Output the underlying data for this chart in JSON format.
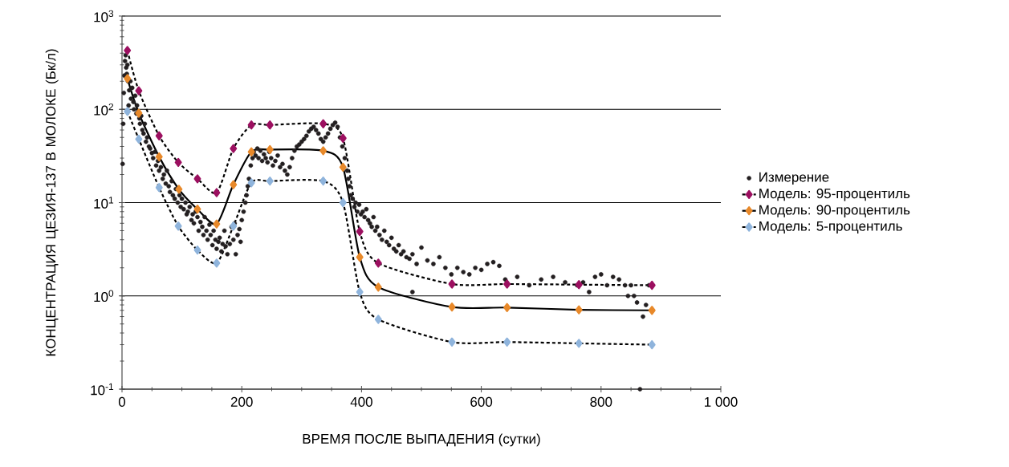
{
  "chart_data": {
    "type": "line",
    "xlabel": "ВРЕМЯ ПОСЛЕ ВЫПАДЕНИЯ (сутки)",
    "ylabel": "КОНЦЕНТРАЦИЯ ЦЕЗИЯ-137 В МОЛОКЕ (Бк/л)",
    "log": "y",
    "grid": "y",
    "legend": "right",
    "xlim": [
      0,
      1000
    ],
    "ylim": [
      0.1,
      1000
    ],
    "xticks": [
      0,
      200,
      400,
      600,
      800,
      {
        "value": 1000,
        "label": "1 000"
      }
    ],
    "yticks": [
      {
        "value": 0.1,
        "label": "10$^{-1}$"
      },
      {
        "value": 1,
        "label": "10$^{0}$"
      },
      {
        "value": 10,
        "label": "10$^{1}$"
      },
      {
        "value": 100,
        "label": "10$^{2}$"
      },
      {
        "value": 1000,
        "label": "10$^{3}$"
      }
    ],
    "series": [
      {
        "name": "Измерение",
        "type": "scatter",
        "marker": "circle",
        "color": "#231f20",
        "x": [
          1,
          2,
          3,
          4,
          5,
          6,
          7,
          8,
          9,
          10,
          11,
          12,
          14,
          15,
          17,
          19,
          20,
          22,
          24,
          25,
          27,
          29,
          30,
          32,
          34,
          36,
          38,
          40,
          42,
          45,
          47,
          50,
          52,
          55,
          57,
          60,
          62,
          65,
          68,
          70,
          73,
          75,
          78,
          80,
          83,
          85,
          88,
          90,
          93,
          96,
          98,
          100,
          103,
          106,
          108,
          110,
          113,
          116,
          118,
          120,
          123,
          126,
          128,
          131,
          134,
          136,
          138,
          141,
          143,
          146,
          148,
          151,
          153,
          156,
          158,
          161,
          163,
          166,
          168,
          171,
          173,
          176,
          180,
          183,
          186,
          188,
          190,
          193,
          196,
          198,
          200,
          203,
          206,
          208,
          210,
          212,
          215,
          218,
          220,
          223,
          226,
          228,
          231,
          234,
          237,
          240,
          243,
          246,
          249,
          252,
          256,
          260,
          264,
          268,
          272,
          276,
          280,
          284,
          288,
          292,
          296,
          300,
          304,
          308,
          312,
          316,
          320,
          324,
          328,
          332,
          336,
          340,
          344,
          348,
          352,
          356,
          360,
          364,
          368,
          372,
          376,
          378,
          380,
          382,
          385,
          388,
          390,
          393,
          396,
          399,
          402,
          405,
          408,
          411,
          414,
          417,
          420,
          423,
          426,
          430,
          434,
          438,
          442,
          446,
          450,
          454,
          458,
          462,
          466,
          470,
          475,
          480,
          485,
          485,
          492,
          500,
          510,
          520,
          530,
          540,
          550,
          560,
          570,
          580,
          590,
          600,
          610,
          620,
          630,
          640,
          660,
          680,
          700,
          720,
          740,
          760,
          770,
          780,
          790,
          800,
          810,
          820,
          830,
          840,
          845,
          850,
          855,
          860,
          865,
          870,
          875,
          880
        ],
        "values": [
          26,
          70,
          150,
          230,
          330,
          380,
          280,
          240,
          300,
          200,
          110,
          160,
          200,
          130,
          170,
          120,
          100,
          140,
          90,
          110,
          95,
          80,
          70,
          85,
          60,
          55,
          70,
          45,
          50,
          40,
          38,
          34,
          30,
          35,
          25,
          28,
          22,
          24,
          18,
          20,
          16,
          22,
          15,
          13,
          17,
          12,
          11,
          14,
          10,
          12,
          9,
          11,
          8.5,
          10,
          7.5,
          8,
          9,
          6.5,
          7.5,
          6,
          8,
          7,
          5,
          6.2,
          5.5,
          4.5,
          7,
          5,
          4,
          5.8,
          4.5,
          3.5,
          5,
          4,
          3.2,
          3.8,
          4.2,
          3,
          3.6,
          5,
          3.4,
          2.8,
          3.6,
          5.5,
          4,
          6,
          2.8,
          4.5,
          5.2,
          3.8,
          6.5,
          8,
          10,
          12,
          15,
          18,
          25,
          30,
          35,
          32,
          38,
          30,
          36,
          28,
          33,
          30,
          27,
          35,
          30,
          25,
          28,
          32,
          24,
          26,
          22,
          20,
          24,
          30,
          36,
          40,
          42,
          45,
          48,
          52,
          58,
          62,
          65,
          60,
          55,
          48,
          45,
          50,
          55,
          62,
          68,
          72,
          65,
          50,
          40,
          30,
          22,
          18,
          15,
          12,
          11,
          9,
          10,
          8,
          9.5,
          7.5,
          8,
          7,
          8.5,
          6.5,
          6,
          5.5,
          7,
          5,
          5.5,
          4.5,
          4,
          5,
          3.8,
          3.5,
          4.2,
          3.2,
          3,
          3.5,
          2.8,
          3,
          2.6,
          2.5,
          2.8,
          1.1,
          2.2,
          3.3,
          2.4,
          2.2,
          2.6,
          2,
          1.7,
          2,
          1.8,
          1.7,
          2,
          1.9,
          2.2,
          2.3,
          2.1,
          1.5,
          1.6,
          1.3,
          1.5,
          1.6,
          1.4,
          1.3,
          1.4,
          1.1,
          1.6,
          1.7,
          1.3,
          1.6,
          1.5,
          1.3,
          1,
          1.3,
          1,
          0.85,
          0.1,
          0.6,
          0.8,
          1.3
        ]
      },
      {
        "name": "Модель: 95-процентиль",
        "marker": "diamond",
        "line_style": "dotted",
        "color": "#9c1060",
        "x": [
          9,
          28,
          62,
          94,
          126,
          158,
          186,
          216,
          247,
          336,
          369,
          397,
          428,
          551,
          643,
          763,
          885
        ],
        "values": [
          427,
          158,
          52,
          27,
          18,
          12.8,
          38,
          68,
          68,
          70,
          49,
          4.9,
          2.25,
          1.34,
          1.34,
          1.32,
          1.3
        ]
      },
      {
        "name": "Модель: 90-процентиль",
        "marker": "diamond",
        "line_style": "solid",
        "color": "#e8892a",
        "x": [
          9,
          28,
          62,
          95,
          126,
          158,
          186,
          216,
          247,
          336,
          369,
          397,
          428,
          551,
          643,
          763,
          885
        ],
        "values": [
          214,
          91,
          31,
          13.9,
          8.5,
          5.9,
          15.6,
          35,
          37,
          36,
          24,
          2.6,
          1.24,
          0.76,
          0.75,
          0.71,
          0.7
        ]
      },
      {
        "name": "Модель: 5-процентиль",
        "marker": "diamond",
        "line_style": "dotted",
        "color": "#8fb4dc",
        "x": [
          9,
          28,
          62,
          94,
          126,
          158,
          186,
          216,
          247,
          336,
          369,
          397,
          428,
          551,
          643,
          763,
          885
        ],
        "values": [
          95,
          48,
          14.5,
          5.6,
          3.1,
          2.25,
          5.6,
          16.3,
          17,
          17,
          10,
          1.1,
          0.56,
          0.32,
          0.32,
          0.31,
          0.3
        ]
      }
    ]
  }
}
